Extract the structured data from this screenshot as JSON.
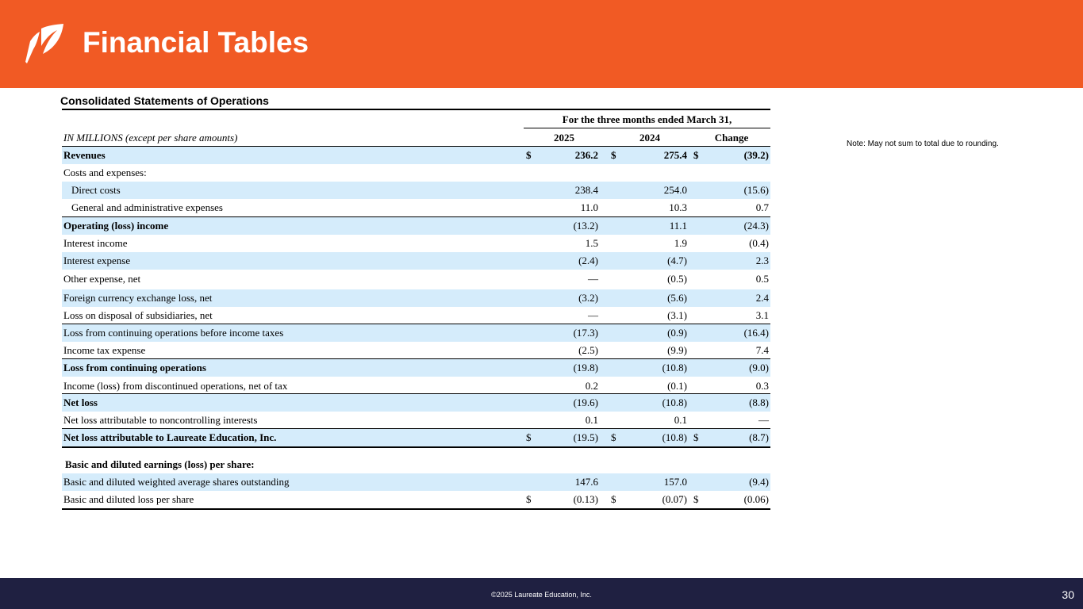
{
  "header": {
    "title": "Financial Tables"
  },
  "section": {
    "title": "Consolidated  Statements  of Operations"
  },
  "note": "Note:  May not sum to total due to rounding.",
  "table": {
    "period": "For the three months  ended March  31,",
    "units_label": "IN MILLIONS  (except per share amounts)",
    "columns": [
      "2025",
      "2024",
      "Change"
    ],
    "currency_symbol": "$",
    "rows": [
      {
        "label": "Revenues",
        "v": [
          "236.2",
          "275.4",
          "(39.2)"
        ],
        "cur": true
      },
      {
        "label": "Costs and expenses:",
        "v": [
          "",
          "",
          ""
        ]
      },
      {
        "label": "Direct costs",
        "v": [
          "238.4",
          "254.0",
          "(15.6)"
        ]
      },
      {
        "label": "General and administrative expenses",
        "v": [
          "11.0",
          "10.3",
          "0.7"
        ]
      },
      {
        "label": "Operating  (loss) income",
        "v": [
          "(13.2)",
          "11.1",
          "(24.3)"
        ]
      },
      {
        "label": "Interest  income",
        "v": [
          "1.5",
          "1.9",
          "(0.4)"
        ]
      },
      {
        "label": "Interest expense",
        "v": [
          "(2.4)",
          "(4.7)",
          "2.3"
        ]
      },
      {
        "label": "Other  expense,  net",
        "v": [
          "—",
          "(0.5)",
          "0.5"
        ]
      },
      {
        "label": "Foreign currency  exchange  loss, net",
        "v": [
          "(3.2)",
          "(5.6)",
          "2.4"
        ]
      },
      {
        "label": "Loss on disposal of subsidiaries, net",
        "v": [
          "—",
          "(3.1)",
          "3.1"
        ]
      },
      {
        "label": "Loss from continuing  operations before income taxes",
        "v": [
          "(17.3)",
          "(0.9)",
          "(16.4)"
        ]
      },
      {
        "label": "Income  tax expense",
        "v": [
          "(2.5)",
          "(9.9)",
          "7.4"
        ]
      },
      {
        "label": "Loss from continuing  operations",
        "v": [
          "(19.8)",
          "(10.8)",
          "(9.0)"
        ]
      },
      {
        "label": "Income  (loss) from discontinued operations, net of tax",
        "v": [
          "0.2",
          "(0.1)",
          "0.3"
        ]
      },
      {
        "label": "Net loss",
        "v": [
          "(19.6)",
          "(10.8)",
          "(8.8)"
        ]
      },
      {
        "label": "Net loss attributable to noncontrolling  interests",
        "v": [
          "0.1",
          "0.1",
          "—"
        ]
      },
      {
        "label": "Net loss attributable  to Laureate  Education,  Inc.",
        "v": [
          "(19.5)",
          "(10.8)",
          "(8.7)"
        ],
        "cur": true
      },
      {
        "label": "Basic and diluted earnings  (loss) per share:",
        "v": [
          "",
          "",
          ""
        ]
      },
      {
        "label": "Basic and diluted weighted average shares outstanding",
        "v": [
          "147.6",
          "157.0",
          "(9.4)"
        ]
      },
      {
        "label": "Basic and diluted loss per share",
        "v": [
          "(0.13)",
          "(0.07)",
          "(0.06)"
        ],
        "cur": true
      }
    ]
  },
  "footer": {
    "copyright": "©2025 Laureate Education, Inc.",
    "page_number": "30"
  },
  "colors": {
    "header": "#f15a24",
    "footer": "#1f2041",
    "row_shade": "#d5ecfb"
  }
}
